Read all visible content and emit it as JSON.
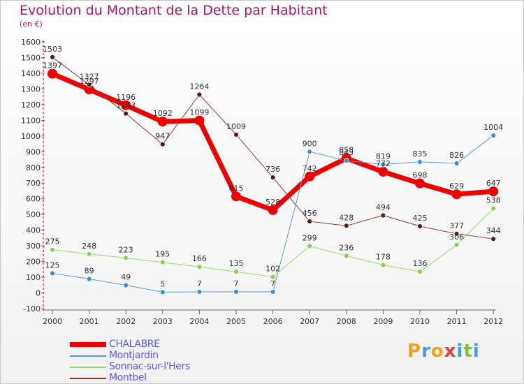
{
  "title": "Evolution du Montant de la Dette par Habitant",
  "subtitle": "(en €)",
  "logo": {
    "text": "Proxiti",
    "letters": [
      {
        "ch": "P",
        "color": "#f0a020"
      },
      {
        "ch": "r",
        "color": "#3aa0e0"
      },
      {
        "ch": "o",
        "color": "#f0a020"
      },
      {
        "ch": "x",
        "color": "#e04040"
      },
      {
        "ch": "i",
        "color": "#3aa0e0"
      },
      {
        "ch": "t",
        "color": "#80c040"
      },
      {
        "ch": "i",
        "color": "#3aa0e0"
      }
    ]
  },
  "chart_data": {
    "type": "line",
    "x": [
      "2000",
      "2001",
      "2002",
      "2003",
      "2004",
      "2005",
      "2006",
      "2007",
      "2008",
      "2009",
      "2010",
      "2011",
      "2012"
    ],
    "ylim": [
      -100,
      1600
    ],
    "yticks": [
      -100,
      0,
      100,
      200,
      300,
      400,
      500,
      600,
      700,
      800,
      900,
      1000,
      1100,
      1200,
      1300,
      1400,
      1500,
      1600
    ],
    "grid": false,
    "legend_position": "bottom-left",
    "series": [
      {
        "name": "CHALABRE",
        "color": "#ee0000",
        "width": 7,
        "marker": 7,
        "markerFill": "#ee0000",
        "values": [
          1397,
          1297,
          1196,
          1092,
          1099,
          615,
          528,
          742,
          858,
          772,
          698,
          629,
          647
        ],
        "labels": [
          "1397",
          "1297",
          "1196",
          "1092",
          "1099",
          "615",
          "528",
          "742",
          "858",
          "772",
          "698",
          "629",
          "647"
        ]
      },
      {
        "name": "Montjardin",
        "color": "#5b9bd5",
        "width": 1,
        "marker": 3.5,
        "markerFill": "#3d8fd6",
        "values": [
          125,
          89,
          49,
          5,
          7,
          7,
          7,
          900,
          843,
          819,
          835,
          826,
          1004
        ],
        "labels": [
          "125",
          "89",
          "49",
          "5",
          "7",
          "7",
          "7",
          "900",
          "843",
          "819",
          "835",
          "826",
          "1004"
        ]
      },
      {
        "name": "Sonnac-sur-l'Hers",
        "color": "#99dd66",
        "width": 1,
        "marker": 3.5,
        "markerFill": "#8ad150",
        "values": [
          275,
          248,
          223,
          195,
          166,
          135,
          102,
          299,
          236,
          178,
          136,
          306,
          538
        ],
        "labels": [
          "275",
          "248",
          "223",
          "195",
          "166",
          "135",
          "102",
          "299",
          "236",
          "178",
          "136",
          "306",
          "538"
        ]
      },
      {
        "name": "Montbel",
        "color": "#8b3a3a",
        "width": 1,
        "marker": 3.5,
        "markerFill": "#5a1a1a",
        "values": [
          1503,
          1327,
          1143,
          947,
          1264,
          1009,
          736,
          456,
          428,
          494,
          425,
          377,
          344
        ],
        "labels": [
          "1503",
          "1327",
          "1143",
          "947",
          "1264",
          "1009",
          "736",
          "456",
          "428",
          "494",
          "425",
          "377",
          "344"
        ]
      }
    ]
  }
}
